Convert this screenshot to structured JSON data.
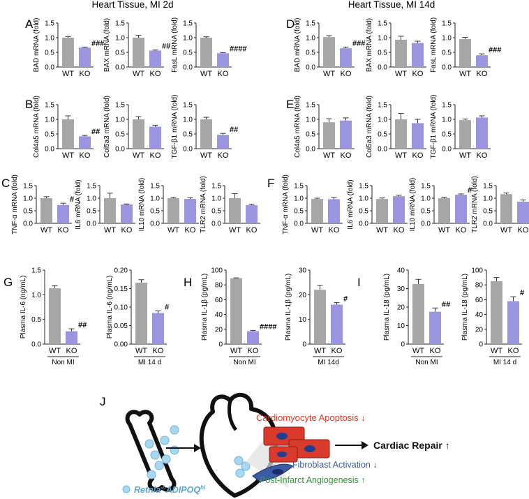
{
  "headers": [
    "Heart Tissue,  MI 2d",
    "Heart Tissue, MI 14d"
  ],
  "panel_letters": [
    "A",
    "B",
    "C",
    "D",
    "E",
    "F",
    "G",
    "H",
    "I",
    "J"
  ],
  "colors": {
    "wt": "#a6a6a6",
    "ko": "#9b95e0",
    "axis": "#222222",
    "sig": "#111111"
  },
  "chart_data": [
    {
      "id": "A1",
      "type": "bar",
      "categories": [
        "WT",
        "KO"
      ],
      "values": [
        1.0,
        0.66
      ],
      "errors": [
        0.04,
        0.02
      ],
      "sig": "###",
      "ylabel": "BAD mRNA (fold)",
      "ylim": [
        0,
        1.5
      ],
      "yticks": [
        "0.0",
        "0.5",
        "1.0",
        "1.5"
      ]
    },
    {
      "id": "A2",
      "type": "bar",
      "categories": [
        "WT",
        "KO"
      ],
      "values": [
        1.0,
        0.56
      ],
      "errors": [
        0.08,
        0.02
      ],
      "sig": "##",
      "ylabel": "BAX mRNA (fold)",
      "ylim": [
        0,
        1.5
      ],
      "yticks": [
        "0.0",
        "0.5",
        "1.0",
        "1.5"
      ]
    },
    {
      "id": "A3",
      "type": "bar",
      "categories": [
        "WT",
        "KO"
      ],
      "values": [
        1.0,
        0.47
      ],
      "errors": [
        0.03,
        0.02
      ],
      "sig": "####",
      "ylabel": "FasL mRNA (fold)",
      "ylim": [
        0,
        1.5
      ],
      "yticks": [
        "0.0",
        "0.5",
        "1.0",
        "1.5"
      ]
    },
    {
      "id": "D1",
      "type": "bar",
      "categories": [
        "WT",
        "KO"
      ],
      "values": [
        1.02,
        0.64
      ],
      "errors": [
        0.05,
        0.04
      ],
      "sig": "###",
      "ylabel": "BAD mRNA (fold)",
      "ylim": [
        0,
        1.5
      ],
      "yticks": [
        "0.0",
        "0.5",
        "1.0",
        "1.5"
      ]
    },
    {
      "id": "D2",
      "type": "bar",
      "categories": [
        "WT",
        "KO"
      ],
      "values": [
        0.93,
        0.82
      ],
      "errors": [
        0.12,
        0.06
      ],
      "sig": "",
      "ylabel": "BAX mRNA (fold)",
      "ylim": [
        0,
        1.5
      ],
      "yticks": [
        "0.0",
        "0.5",
        "1.0",
        "1.5"
      ]
    },
    {
      "id": "D3",
      "type": "bar",
      "categories": [
        "WT",
        "KO"
      ],
      "values": [
        0.95,
        0.4
      ],
      "errors": [
        0.06,
        0.05
      ],
      "sig": "###",
      "ylabel": "FasL mRNA (fold)",
      "ylim": [
        0,
        1.5
      ],
      "yticks": [
        "0.0",
        "0.5",
        "1.0",
        "1.5"
      ]
    },
    {
      "id": "B1",
      "type": "bar",
      "categories": [
        "WT",
        "KO"
      ],
      "values": [
        1.0,
        0.42
      ],
      "errors": [
        0.12,
        0.03
      ],
      "sig": "##",
      "ylabel": "Col4a5 mRNA (fold)",
      "ylim": [
        0,
        1.5
      ],
      "yticks": [
        "0.0",
        "0.5",
        "1.0",
        "1.5"
      ]
    },
    {
      "id": "B2",
      "type": "bar",
      "categories": [
        "WT",
        "KO"
      ],
      "values": [
        1.0,
        0.75
      ],
      "errors": [
        0.09,
        0.05
      ],
      "sig": "",
      "ylabel": "Col5a3 mRNA (fold)",
      "ylim": [
        0,
        1.5
      ],
      "yticks": [
        "0.0",
        "0.5",
        "1.0",
        "1.5"
      ]
    },
    {
      "id": "B3",
      "type": "bar",
      "categories": [
        "WT",
        "KO"
      ],
      "values": [
        1.0,
        0.47
      ],
      "errors": [
        0.07,
        0.05
      ],
      "sig": "##",
      "ylabel": "TGF-β1 mRNA (fold)",
      "ylim": [
        0,
        1.5
      ],
      "yticks": [
        "0.0",
        "0.5",
        "1.0",
        "1.5"
      ]
    },
    {
      "id": "E1",
      "type": "bar",
      "categories": [
        "WT",
        "KO"
      ],
      "values": [
        0.9,
        0.96
      ],
      "errors": [
        0.12,
        0.09
      ],
      "sig": "",
      "ylabel": "Col4a5 mRNA (fold)",
      "ylim": [
        0,
        1.5
      ],
      "yticks": [
        "0.0",
        "0.5",
        "1.0",
        "1.5"
      ]
    },
    {
      "id": "E2",
      "type": "bar",
      "categories": [
        "WT",
        "KO"
      ],
      "values": [
        1.0,
        0.87
      ],
      "errors": [
        0.2,
        0.13
      ],
      "sig": "",
      "ylabel": "Col5a3 mRNA (fold)",
      "ylim": [
        0,
        1.5
      ],
      "yticks": [
        "0.0",
        "0.5",
        "1.0",
        "1.5"
      ]
    },
    {
      "id": "E3",
      "type": "bar",
      "categories": [
        "WT",
        "KO"
      ],
      "values": [
        0.97,
        1.06
      ],
      "errors": [
        0.04,
        0.06
      ],
      "sig": "",
      "ylabel": "TGF-β1 mRNA (fold)",
      "ylim": [
        0,
        1.5
      ],
      "yticks": [
        "0.0",
        "0.5",
        "1.0",
        "1.5"
      ]
    },
    {
      "id": "C1",
      "type": "bar",
      "categories": [
        "WT",
        "KO"
      ],
      "values": [
        1.0,
        0.73
      ],
      "errors": [
        0.06,
        0.07
      ],
      "sig": "#",
      "ylabel": "TNF-α mRNA (fold)",
      "ylim": [
        0,
        1.5
      ],
      "yticks": [
        "0.0",
        "0.5",
        "1.0",
        "1.5"
      ]
    },
    {
      "id": "C2",
      "type": "bar",
      "categories": [
        "WT",
        "KO"
      ],
      "values": [
        1.0,
        0.75
      ],
      "errors": [
        0.2,
        0.02
      ],
      "sig": "",
      "ylabel": "IL6 mRNA (fold)",
      "ylim": [
        0,
        1.5
      ],
      "yticks": [
        "0.0",
        "0.5",
        "1.0",
        "1.5"
      ]
    },
    {
      "id": "C3",
      "type": "bar",
      "categories": [
        "WT",
        "KO"
      ],
      "values": [
        1.0,
        0.97
      ],
      "errors": [
        0.03,
        0.05
      ],
      "sig": "",
      "ylabel": "IL10 mRNA (fold)",
      "ylim": [
        0,
        1.5
      ],
      "yticks": [
        "0.0",
        "0.5",
        "1.0",
        "1.5"
      ]
    },
    {
      "id": "C4",
      "type": "bar",
      "categories": [
        "WT",
        "KO"
      ],
      "values": [
        1.0,
        0.72
      ],
      "errors": [
        0.18,
        0.04
      ],
      "sig": "",
      "ylabel": "TLR2 mRNA (fold)",
      "ylim": [
        0,
        1.5
      ],
      "yticks": [
        "0.0",
        "0.5",
        "1.0",
        "1.5"
      ]
    },
    {
      "id": "F1",
      "type": "bar",
      "categories": [
        "WT",
        "KO"
      ],
      "values": [
        0.97,
        0.96
      ],
      "errors": [
        0.03,
        0.07
      ],
      "sig": "",
      "ylabel": "TNF-α mRNA (fold)",
      "ylim": [
        0,
        1.5
      ],
      "yticks": [
        "0.0",
        "0.5",
        "1.0",
        "1.5"
      ]
    },
    {
      "id": "F2",
      "type": "bar",
      "categories": [
        "WT",
        "KO"
      ],
      "values": [
        0.97,
        1.08
      ],
      "errors": [
        0.04,
        0.04
      ],
      "sig": "",
      "ylabel": "IL6 mRNA (fold)",
      "ylim": [
        0,
        1.5
      ],
      "yticks": [
        "0.0",
        "0.5",
        "1.0",
        "1.5"
      ]
    },
    {
      "id": "F3",
      "type": "bar",
      "categories": [
        "WT",
        "KO"
      ],
      "values": [
        1.0,
        1.14
      ],
      "errors": [
        0.04,
        0.03
      ],
      "sig": "#",
      "ylabel": "IL10 mRNA (fold)",
      "ylim": [
        0,
        1.5
      ],
      "yticks": [
        "0.0",
        "0.5",
        "1.0",
        "1.5"
      ]
    },
    {
      "id": "F4",
      "type": "bar",
      "categories": [
        "WT",
        "KO"
      ],
      "values": [
        1.16,
        0.86
      ],
      "errors": [
        0.05,
        0.07
      ],
      "sig": "#",
      "ylabel": "TLR2 mRNA (fold)",
      "ylim": [
        0,
        1.5
      ],
      "yticks": [
        "0.0",
        "0.5",
        "1.0",
        "1.5"
      ]
    },
    {
      "id": "G1",
      "type": "bar",
      "categories": [
        "WT",
        "KO"
      ],
      "values": [
        1.13,
        0.26
      ],
      "errors": [
        0.05,
        0.05
      ],
      "sig": "##",
      "ylabel": "Plasma IL-6 (ng/mL)",
      "xlabel": "Non MI",
      "ylim": [
        0,
        1.5
      ],
      "yticks": [
        "0.0",
        "0.5",
        "1.0",
        "1.5"
      ]
    },
    {
      "id": "G2",
      "type": "bar",
      "categories": [
        "WT",
        "KO"
      ],
      "values": [
        0.166,
        0.084
      ],
      "errors": [
        0.008,
        0.006
      ],
      "sig": "#",
      "ylabel": "Plasma IL-6 (ng/mL)",
      "xlabel": "MI 14 d",
      "ylim": [
        0,
        0.2
      ],
      "yticks": [
        "0.00",
        "0.05",
        "0.10",
        "0.15",
        "0.20"
      ]
    },
    {
      "id": "H1",
      "type": "bar",
      "categories": [
        "WT",
        "KO"
      ],
      "values": [
        89,
        17.5
      ],
      "errors": [
        0.5,
        1
      ],
      "sig": "####",
      "ylabel": "Plasma IL-1β (pg/mL)",
      "xlabel": "Non MI",
      "ylim": [
        0,
        100
      ],
      "yticks": [
        "0",
        "20",
        "40",
        "60",
        "80",
        "100"
      ]
    },
    {
      "id": "H2",
      "type": "bar",
      "categories": [
        "WT",
        "KO"
      ],
      "values": [
        22,
        16
      ],
      "errors": [
        1.8,
        0.8
      ],
      "sig": "#",
      "ylabel": "Plasma IL-1β (pg/mL)",
      "xlabel": "MI 14d",
      "ylim": [
        0,
        30
      ],
      "yticks": [
        "0",
        "10",
        "20",
        "30"
      ]
    },
    {
      "id": "I1",
      "type": "bar",
      "categories": [
        "WT",
        "KO"
      ],
      "values": [
        32.5,
        17.5
      ],
      "errors": [
        2.5,
        2
      ],
      "sig": "##",
      "ylabel": "Plasma IL-18 (pg/mL)",
      "xlabel": "Non MI",
      "ylim": [
        0,
        40
      ],
      "yticks": [
        "0",
        "10",
        "20",
        "30",
        "40"
      ]
    },
    {
      "id": "I2",
      "type": "bar",
      "categories": [
        "WT",
        "KO"
      ],
      "values": [
        85,
        58
      ],
      "errors": [
        5,
        6
      ],
      "sig": "#",
      "ylabel": "Plasma IL-18 (pg/mL)",
      "xlabel": "MI 14 d",
      "ylim": [
        0,
        100
      ],
      "yticks": [
        "0",
        "20",
        "40",
        "60",
        "80",
        "100"
      ]
    }
  ],
  "schematic": {
    "apoptosis": "Cardiomyocyte Apoptosis ↓",
    "repair": "Cardiac Repair ↑",
    "fibroblast": "Fibroblast Activation ↓",
    "angiogenesis": "Post-Infarct Angiogenesis ↑",
    "cell_label": "Retnla",
    "cell_label_sup1": "-/-",
    "cell_label_mid": "ADIPOQ",
    "cell_label_sup2": "hi",
    "apoptosis_color": "#d93a2b",
    "fibroblast_color": "#3b5ba5",
    "angiogenesis_color": "#2f9a3a",
    "cell_color": "#5aa6d9"
  }
}
